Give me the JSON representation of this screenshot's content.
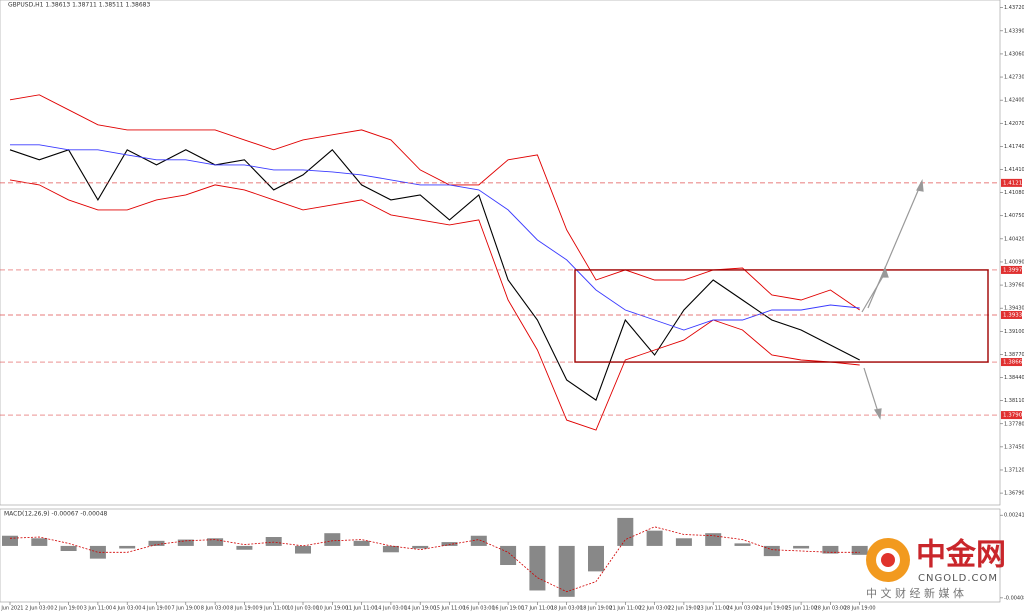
{
  "chart_data": [
    {
      "type": "line",
      "title": "GBPUSD,H1  1.38613 1.38711 1.38511 1.38683",
      "categories": [
        "1 Jun 2021",
        "2 Jun 03:00",
        "2 Jun 19:00",
        "3 Jun 11:00",
        "4 Jun 03:00",
        "4 Jun 19:00",
        "7 Jun 19:00",
        "8 Jun 03:00",
        "8 Jun 19:00",
        "9 Jun 11:00",
        "10 Jun 03:00",
        "10 Jun 19:00",
        "11 Jun 11:00",
        "14 Jun 03:00",
        "14 Jun 19:00",
        "15 Jun 11:00",
        "16 Jun 03:00",
        "16 Jun 19:00",
        "17 Jun 11:00",
        "18 Jun 03:00",
        "18 Jun 19:00",
        "21 Jun 11:00",
        "22 Jun 03:00",
        "22 Jun 19:00",
        "23 Jun 11:00",
        "24 Jun 03:00",
        "24 Jun 19:00",
        "25 Jun 11:00",
        "28 Jun 03:00",
        "28 Jun 19:00"
      ],
      "series": [
        {
          "name": "Close",
          "color": "#000000",
          "values": [
            1.41691,
            1.41548,
            1.41691,
            1.40976,
            1.41691,
            1.41476,
            1.41691,
            1.41476,
            1.41548,
            1.41119,
            1.41333,
            1.41691,
            1.4119,
            1.40976,
            1.41048,
            1.4069,
            1.41048,
            1.39833,
            1.39261,
            1.38404,
            1.38118,
            1.39261,
            1.38761,
            1.39404,
            1.39833,
            1.39547,
            1.39261,
            1.39118,
            1.38904,
            1.3869
          ]
        },
        {
          "name": "Upper Band",
          "color": "#e00000",
          "values": [
            1.42405,
            1.42476,
            1.42262,
            1.42048,
            1.41976,
            1.41976,
            1.41976,
            1.41976,
            1.41833,
            1.41691,
            1.41833,
            1.41905,
            1.41976,
            1.41833,
            1.41405,
            1.4119,
            1.4119,
            1.41548,
            1.41619,
            1.40547,
            1.39833,
            1.39976,
            1.39833,
            1.39833,
            1.39976,
            1.40004,
            1.39618,
            1.39547,
            1.3969,
            1.39404
          ]
        },
        {
          "name": "Lower Band",
          "color": "#e00000",
          "values": [
            1.41262,
            1.4119,
            1.40976,
            1.40833,
            1.40833,
            1.40976,
            1.41048,
            1.4119,
            1.41119,
            1.40976,
            1.40833,
            1.40905,
            1.40976,
            1.40762,
            1.4069,
            1.40619,
            1.4069,
            1.39547,
            1.38833,
            1.37832,
            1.37689,
            1.3869,
            1.38833,
            1.38975,
            1.39261,
            1.39118,
            1.38761,
            1.3869,
            1.38661,
            1.38619
          ]
        },
        {
          "name": "MA",
          "color": "#3a3aff",
          "values": [
            1.41762,
            1.41762,
            1.41691,
            1.41691,
            1.41619,
            1.41548,
            1.41548,
            1.41476,
            1.41476,
            1.41405,
            1.41405,
            1.41376,
            1.41333,
            1.41262,
            1.4119,
            1.4119,
            1.41119,
            1.40833,
            1.40404,
            1.40119,
            1.3969,
            1.39404,
            1.39261,
            1.39118,
            1.39261,
            1.39261,
            1.39404,
            1.39404,
            1.39476,
            1.39433
          ]
        }
      ],
      "levels": [
        {
          "value": 1.41219,
          "label": "1.41219"
        },
        {
          "value": 1.39976,
          "label": "1.39976"
        },
        {
          "value": 1.39333,
          "label": "1.39333"
        },
        {
          "value": 1.38661,
          "label": "1.38661"
        },
        {
          "value": 1.37904,
          "label": "1.37904"
        }
      ],
      "ylim": [
        1.3662,
        1.4383
      ],
      "yticks": [
        {
          "value": 1.4372,
          "label": "1.43720"
        },
        {
          "value": 1.4339,
          "label": "1.43390"
        },
        {
          "value": 1.4306,
          "label": "1.43060"
        },
        {
          "value": 1.4273,
          "label": "1.42730"
        },
        {
          "value": 1.424,
          "label": "1.42400"
        },
        {
          "value": 1.4207,
          "label": "1.42070"
        },
        {
          "value": 1.4174,
          "label": "1.41740"
        },
        {
          "value": 1.4141,
          "label": "1.41410"
        },
        {
          "value": 1.4108,
          "label": "1.41080"
        },
        {
          "value": 1.4075,
          "label": "1.40750"
        },
        {
          "value": 1.4042,
          "label": "1.40420"
        },
        {
          "value": 1.4009,
          "label": "1.40090"
        },
        {
          "value": 1.3976,
          "label": "1.39760"
        },
        {
          "value": 1.3943,
          "label": "1.39430"
        },
        {
          "value": 1.391,
          "label": "1.39100"
        },
        {
          "value": 1.3877,
          "label": "1.38770"
        },
        {
          "value": 1.3844,
          "label": "1.38440"
        },
        {
          "value": 1.3811,
          "label": "1.38110"
        },
        {
          "value": 1.3778,
          "label": "1.37780"
        },
        {
          "value": 1.3745,
          "label": "1.37450"
        },
        {
          "value": 1.3712,
          "label": "1.37120"
        },
        {
          "value": 1.3679,
          "label": "1.36790"
        }
      ]
    },
    {
      "type": "bar",
      "title": "MACD(12,26,9) -0.00067 -0.00048",
      "series": [
        {
          "name": "MACD",
          "color": "#888888",
          "values": [
            0.0008,
            0.0006,
            -0.0004,
            -0.001,
            -0.0002,
            0.0004,
            0.0005,
            0.0006,
            -0.0003,
            0.0007,
            -0.0006,
            0.001,
            0.0004,
            -0.0005,
            -0.0002,
            0.0003,
            0.0008,
            -0.0015,
            -0.0035,
            -0.004,
            -0.002,
            0.0022,
            0.0012,
            0.0006,
            0.001,
            0.0002,
            -0.0008,
            -0.0002,
            -0.0006,
            -0.0007
          ]
        },
        {
          "name": "Signal",
          "color": "#d00000",
          "values": [
            0.0006,
            0.0007,
            0.0002,
            -0.0005,
            -0.0005,
            0.0001,
            0.0004,
            0.0005,
            0.0001,
            0.0003,
            0.0,
            0.0004,
            0.0005,
            0.0,
            -0.0003,
            0.0001,
            0.0005,
            -0.0005,
            -0.0025,
            -0.0036,
            -0.0028,
            0.0005,
            0.0015,
            0.0009,
            0.0008,
            0.0005,
            -0.0003,
            -0.0004,
            -0.0005,
            -0.0005
          ]
        }
      ],
      "ylim": [
        -0.004406,
        0.002901
      ],
      "yticks": [
        0.002414,
        -0.004081
      ]
    }
  ],
  "watermark": {
    "name": "中金网",
    "site": "CNGOLD.COM",
    "slogan": "中 文 财 经 新 媒 体"
  }
}
